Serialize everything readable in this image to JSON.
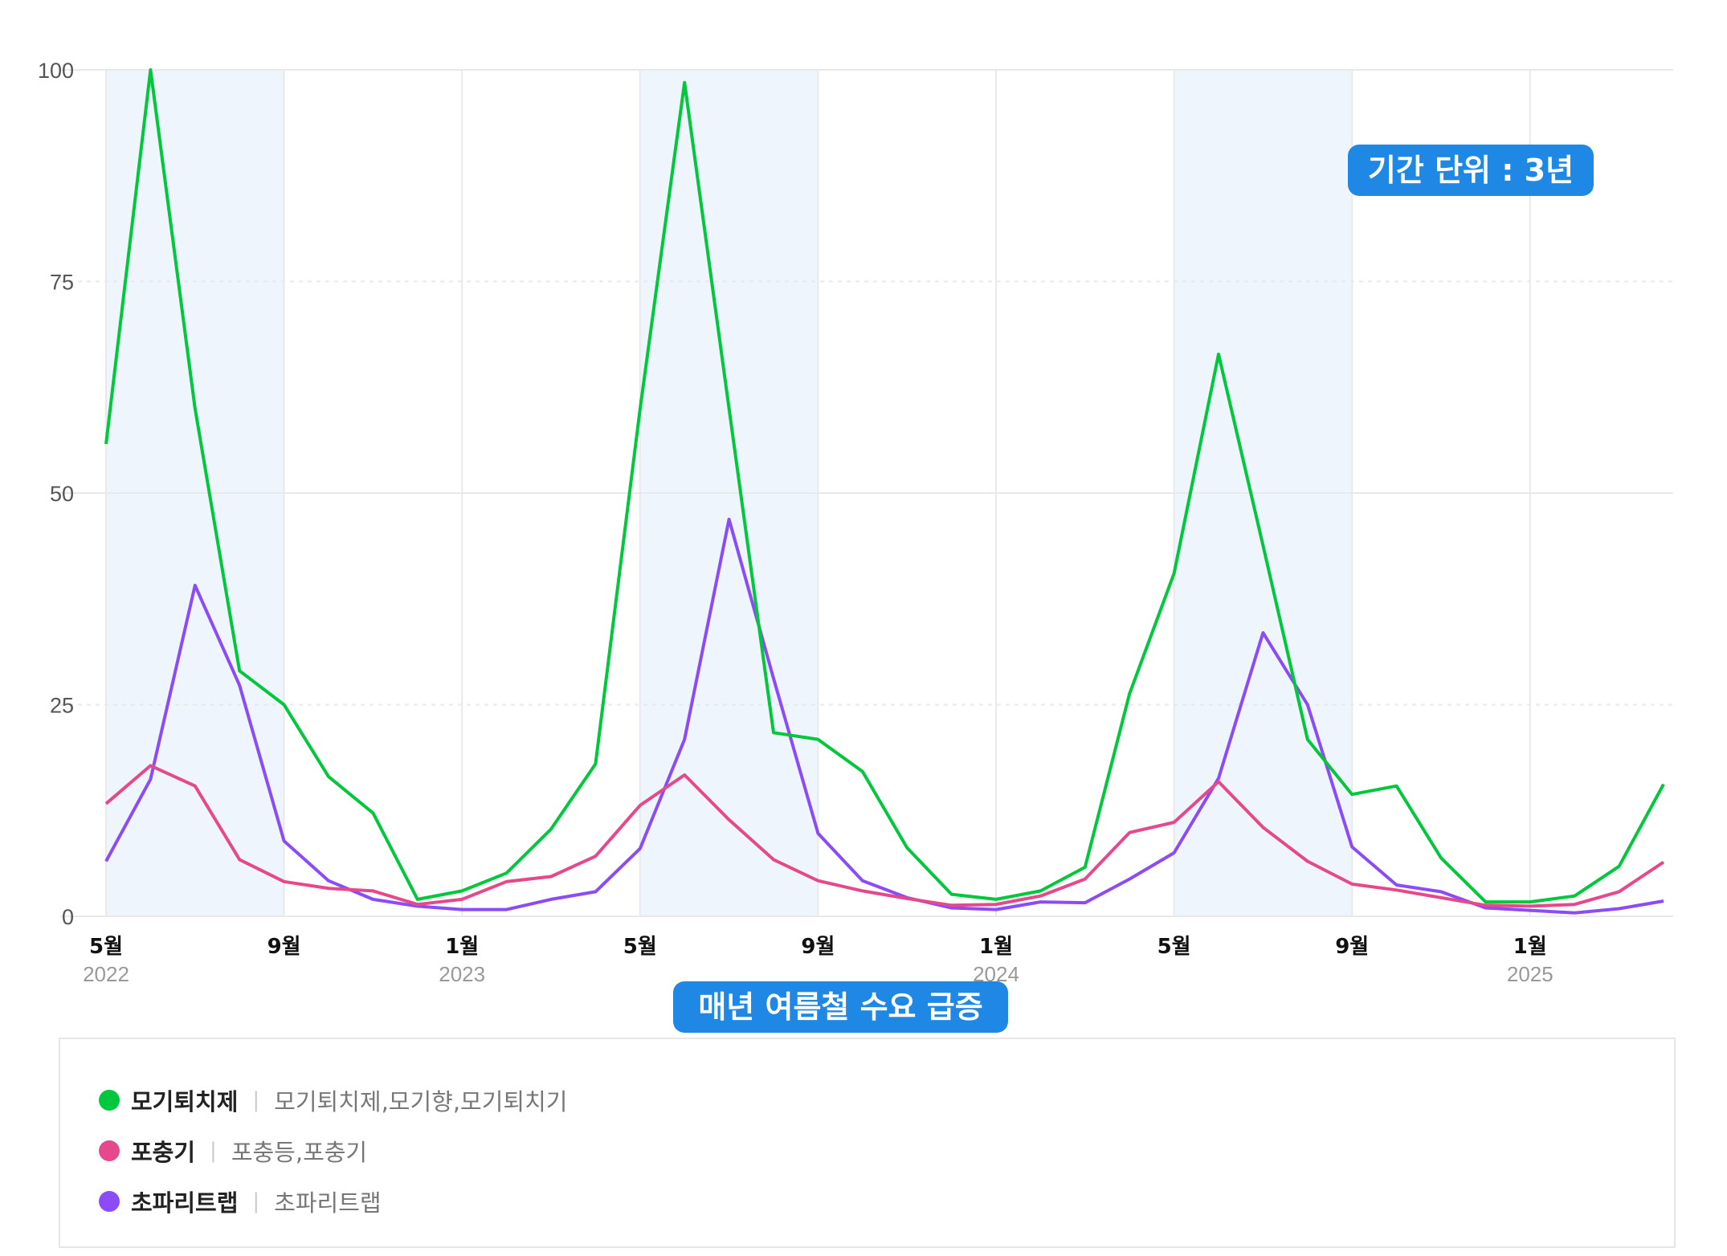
{
  "chart_data": {
    "type": "line",
    "title": "",
    "xlabel": "",
    "ylabel": "",
    "ylim": [
      0,
      100
    ],
    "yticks": [
      0,
      25,
      50,
      75,
      100
    ],
    "ytick_labels": [
      "0",
      "25",
      "50",
      "75",
      "100"
    ],
    "grid": true,
    "legend_position": "bottom",
    "x": [
      "2022-05",
      "2022-06",
      "2022-07",
      "2022-08",
      "2022-09",
      "2022-10",
      "2022-11",
      "2022-12",
      "2023-01",
      "2023-02",
      "2023-03",
      "2023-04",
      "2023-05",
      "2023-06",
      "2023-07",
      "2023-08",
      "2023-09",
      "2023-10",
      "2023-11",
      "2023-12",
      "2024-01",
      "2024-02",
      "2024-03",
      "2024-04",
      "2024-05",
      "2024-06",
      "2024-07",
      "2024-08",
      "2024-09",
      "2024-10",
      "2024-11",
      "2024-12",
      "2025-01",
      "2025-02",
      "2025-03",
      "2025-04"
    ],
    "xtick_labels": [
      {
        "month": "5월",
        "year": "2022",
        "index": 0
      },
      {
        "month": "9월",
        "year": "",
        "index": 4
      },
      {
        "month": "1월",
        "year": "2023",
        "index": 8
      },
      {
        "month": "5월",
        "year": "",
        "index": 12
      },
      {
        "month": "9월",
        "year": "",
        "index": 16
      },
      {
        "month": "1월",
        "year": "2024",
        "index": 20
      },
      {
        "month": "5월",
        "year": "",
        "index": 24
      },
      {
        "month": "9월",
        "year": "",
        "index": 28
      },
      {
        "month": "1월",
        "year": "2025",
        "index": 32
      }
    ],
    "highlight_bands": [
      {
        "from_index": 0,
        "to_index": 4
      },
      {
        "from_index": 12,
        "to_index": 16
      },
      {
        "from_index": 24,
        "to_index": 28
      }
    ],
    "series": [
      {
        "name": "모기퇴치제",
        "keywords": "모기퇴치제,모기향,모기퇴치기",
        "color": "#00c73c",
        "values": [
          55.8,
          100,
          60,
          29,
          25,
          16.5,
          12.2,
          2,
          3,
          5.1,
          10.3,
          18,
          59.9,
          98.5,
          60,
          21.7,
          20.9,
          17.1,
          8.1,
          2.6,
          2,
          3,
          5.8,
          26.3,
          40.5,
          66.4,
          43.8,
          20.9,
          14.4,
          15.4,
          6.9,
          1.7,
          1.7,
          2.4,
          5.9,
          15.6
        ]
      },
      {
        "name": "포충기",
        "keywords": "포충등,포충기",
        "color": "#e6488c",
        "values": [
          13.3,
          17.8,
          15.4,
          6.7,
          4.1,
          3.3,
          3,
          1.4,
          2,
          4.1,
          4.7,
          7.1,
          13.1,
          16.7,
          11.4,
          6.7,
          4.2,
          3,
          2.1,
          1.3,
          1.4,
          2.4,
          4.4,
          9.9,
          11.1,
          15.9,
          10.5,
          6.5,
          3.8,
          3.1,
          2.2,
          1.3,
          1.2,
          1.4,
          2.9,
          6.4
        ]
      },
      {
        "name": "초파리트랩",
        "keywords": "초파리트랩",
        "color": "#8b4cf7",
        "values": [
          6.5,
          16.2,
          39.1,
          27.3,
          8.9,
          4.2,
          2,
          1.2,
          0.8,
          0.8,
          2,
          2.9,
          8,
          20.9,
          46.9,
          28.1,
          9.8,
          4.2,
          2.2,
          1,
          0.8,
          1.7,
          1.6,
          4.4,
          7.5,
          16.3,
          33.5,
          25,
          8.2,
          3.7,
          2.9,
          1,
          0.7,
          0.4,
          0.9,
          1.8
        ]
      }
    ],
    "annotations": [
      "기간 단위 : 3년",
      "매년 여름철 수요 급증"
    ]
  },
  "annotations": {
    "period_badge": "기간 단위 : 3년",
    "summer_badge": "매년 여름철 수요 급증"
  },
  "legend": [
    {
      "name": "모기퇴치제",
      "separator": "|",
      "keywords": "모기퇴치제,모기향,모기퇴치기",
      "color": "#00c73c"
    },
    {
      "name": "포충기",
      "separator": "|",
      "keywords": "포충등,포충기",
      "color": "#e6488c"
    },
    {
      "name": "초파리트랩",
      "separator": "|",
      "keywords": "초파리트랩",
      "color": "#8b4cf7"
    }
  ],
  "colors": {
    "band": "#eef5fc",
    "grid": "#e9e9e9",
    "badge": "#1f88e5"
  }
}
